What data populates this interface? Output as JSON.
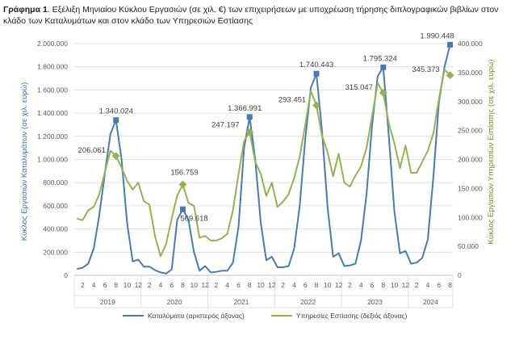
{
  "caption": {
    "label": "Γράφημα 1",
    "text": ". Εξέλιξη Μηνιαίου Κύκλου Εργασιών (σε χιλ. €) των επιχειρήσεων με υποχρέωση τήρησης διπλογραφικών βιβλίων στον κλάδο των Καταλυμάτων και στον κλάδο των Υπηρεσιών Εστίασης"
  },
  "chart_data": {
    "type": "line",
    "ylabel_left": "Κύκλος Εργασιών Καταλυμάτων (σε χιλ. ευρώ)",
    "ylabel_right": "Κύκλος Εργασιών Υπηρεσιών Εστίασης (σε χιλ. ευρώ)",
    "ylim_left": [
      0,
      2000000
    ],
    "ylim_right": [
      0,
      400000
    ],
    "yticks_left": [
      "0",
      "200.000",
      "400.000",
      "600.000",
      "800.000",
      "1.000.000",
      "1.200.000",
      "1.400.000",
      "1.600.000",
      "1.800.000",
      "2.000.000"
    ],
    "yticks_right": [
      "0",
      "50.000",
      "100.000",
      "150.000",
      "200.000",
      "250.000",
      "300.000",
      "350.000",
      "400.000"
    ],
    "years": [
      "2019",
      "2020",
      "2021",
      "2022",
      "2023",
      "2024"
    ],
    "month_ticks": [
      "2",
      "4",
      "6",
      "8",
      "10",
      "12"
    ],
    "month_ticks_last": [
      "2",
      "4",
      "6",
      "8"
    ],
    "grid": true,
    "legend_position": "bottom",
    "series": [
      {
        "name": "Καταλύματα (αριστερός άξονας)",
        "axis": "left",
        "color": "#4a7ab5",
        "values": [
          55000,
          65000,
          100000,
          230000,
          520000,
          880000,
          1220000,
          1340024,
          1000000,
          450000,
          120000,
          135000,
          75000,
          75000,
          45000,
          25000,
          15000,
          50000,
          480000,
          569618,
          480000,
          200000,
          40000,
          80000,
          25000,
          30000,
          40000,
          40000,
          110000,
          420000,
          1100000,
          1366991,
          1000000,
          450000,
          130000,
          160000,
          70000,
          70000,
          80000,
          230000,
          600000,
          1180000,
          1620000,
          1740443,
          1250000,
          590000,
          160000,
          190000,
          80000,
          85000,
          100000,
          300000,
          700000,
          1300000,
          1720000,
          1795324,
          1200000,
          550000,
          190000,
          210000,
          100000,
          110000,
          150000,
          310000,
          850000,
          1500000,
          1800000,
          1990448
        ]
      },
      {
        "name": "Υπηρεσίες Εστίασης (δεξιός άξονας)",
        "axis": "right",
        "color": "#92b44e",
        "values": [
          98000,
          95000,
          112000,
          118000,
          140000,
          178000,
          215000,
          206061,
          186000,
          163000,
          148000,
          160000,
          128000,
          122000,
          68000,
          33000,
          54000,
          98000,
          138000,
          156759,
          125000,
          120000,
          65000,
          68000,
          60000,
          60000,
          64000,
          72000,
          112000,
          175000,
          232000,
          247197,
          196000,
          175000,
          137000,
          160000,
          118000,
          127000,
          140000,
          168000,
          205000,
          260000,
          318000,
          293451,
          241000,
          212000,
          171000,
          210000,
          160000,
          153000,
          172000,
          188000,
          220000,
          275000,
          332000,
          315047,
          262000,
          228000,
          185000,
          224000,
          177000,
          177000,
          196000,
          215000,
          245000,
          305000,
          355000,
          345373
        ]
      }
    ],
    "data_labels": [
      {
        "series": 0,
        "index": 7,
        "text": "1.340.024"
      },
      {
        "series": 0,
        "index": 19,
        "text": "569.618"
      },
      {
        "series": 0,
        "index": 31,
        "text": "1.366.991"
      },
      {
        "series": 0,
        "index": 43,
        "text": "1.740.443"
      },
      {
        "series": 0,
        "index": 55,
        "text": "1.795.324"
      },
      {
        "series": 0,
        "index": 67,
        "text": "1.990.448"
      },
      {
        "series": 1,
        "index": 7,
        "text": "206.061"
      },
      {
        "series": 1,
        "index": 19,
        "text": "156.759"
      },
      {
        "series": 1,
        "index": 31,
        "text": "247.197"
      },
      {
        "series": 1,
        "index": 43,
        "text": "293.451"
      },
      {
        "series": 1,
        "index": 55,
        "text": "315.047"
      },
      {
        "series": 1,
        "index": 67,
        "text": "345.373"
      }
    ]
  }
}
